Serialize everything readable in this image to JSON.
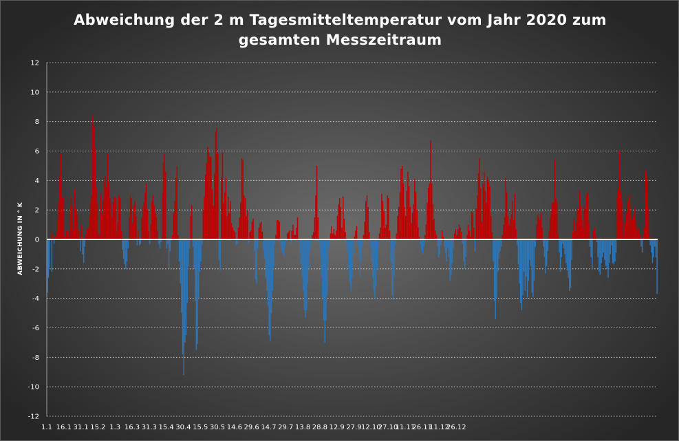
{
  "chart_data": {
    "type": "bar",
    "title": [
      "Abweichung der 2 m Tagesmitteltemperatur  vom Jahr 2020 zum",
      "gesamten Messzeitraum"
    ],
    "ylabel": "ABWEICHUNG IN ° K",
    "ylim": [
      -12,
      12
    ],
    "y_ticks": [
      12,
      10,
      8,
      6,
      4,
      2,
      0,
      -2,
      -4,
      -6,
      -8,
      -10,
      -12
    ],
    "grid": "horizontal dotted",
    "x_tick_labels": [
      "1.1",
      "16.1",
      "31.1",
      "15.2",
      "1.3",
      "16.3",
      "31.3",
      "15.4",
      "30.4",
      "15.5",
      "30.5",
      "14.6",
      "29.6",
      "14.7",
      "29.7",
      "13.8",
      "28.8",
      "12.9",
      "27.9",
      "12.10",
      "27.10",
      "11.11",
      "26.11",
      "11.12",
      "26.12"
    ],
    "colors": {
      "positive": "#c00000",
      "negative": "#2e75b6",
      "zero_line": "#ffffff"
    },
    "series": [
      {
        "x_start": "1.1",
        "values": [
          -3.6,
          -2.6,
          -1.9,
          0.5,
          -2.2,
          0.3,
          -0.3,
          0.2,
          0.5,
          1.4,
          2.6,
          4.2,
          5.8,
          2.8,
          2.9,
          0.2,
          0.2,
          0.6,
          0.6,
          0.3,
          2.2,
          2.9,
          2.3,
          0.7,
          3.4,
          2.1,
          1.8,
          0.7,
          0.6,
          -0.8,
          1.0,
          -1.0,
          -1.6,
          -0.5,
          0.3,
          0.7,
          0.8,
          1.6,
          2.6,
          3.0,
          8.4,
          7.7,
          6.2,
          3.5,
          2.5,
          0.4,
          0.3,
          3.1,
          1.7,
          2.6,
          3.9,
          4.3,
          3.5,
          5.8,
          3.9,
          2.8,
          2.4,
          1.5,
          2.5,
          2.9,
          2.8,
          0.5,
          1.2,
          3.0,
          2.8,
          0.6,
          -0.7,
          -1.3,
          -1.7,
          -2.0,
          -1.5,
          -0.6,
          1.5,
          3.0,
          2.8,
          1.1,
          2.3,
          2.6,
          1.6,
          -0.4,
          0.6,
          -0.4,
          -0.3,
          1.5,
          2.2,
          2.5,
          3.2,
          3.8,
          2.0,
          0.6,
          -0.3,
          1.0,
          2.6,
          3.0,
          2.3,
          1.8,
          1.5,
          0.6,
          -0.3,
          -0.6,
          -0.2,
          3.2,
          5.2,
          5.8,
          4.6,
          -0.6,
          -0.3,
          -2.0,
          -0.8,
          -0.1,
          0.3,
          1.8,
          2.6,
          4.2,
          5.0,
          0.3,
          -1.5,
          -3.0,
          -5.0,
          -7.8,
          -9.2,
          -7.0,
          -6.5,
          -4.3,
          -1.8,
          -0.6,
          1.6,
          2.3,
          -0.5,
          -2.0,
          -4.2,
          -7.5,
          -7.1,
          -4.0,
          -2.2,
          -1.5,
          -0.4,
          2.0,
          2.9,
          4.4,
          5.2,
          6.3,
          5.9,
          5.6,
          5.6,
          3.4,
          2.3,
          4.5,
          7.3,
          7.6,
          5.9,
          -1.4,
          -2.1,
          4.2,
          5.9,
          2.5,
          3.2,
          4.2,
          1.6,
          2.9,
          1.8,
          2.6,
          1.1,
          0.8,
          0.6,
          0.5,
          -0.4,
          -0.3,
          0.8,
          1.5,
          2.5,
          5.5,
          5.4,
          3.0,
          2.8,
          1.6,
          2.0,
          -0.3,
          0.5,
          0.6,
          1.2,
          1.4,
          -0.8,
          -2.7,
          -3.0,
          -0.6,
          0.8,
          1.1,
          1.2,
          0.5,
          -0.7,
          -1.3,
          -2.6,
          -3.5,
          -4.5,
          -6.5,
          -6.9,
          -5.0,
          -3.5,
          -1.8,
          -0.3,
          0.3,
          1.3,
          1.3,
          1.2,
          -0.3,
          -0.8,
          -1.0,
          -1.2,
          -0.5,
          -0.2,
          0.4,
          0.5,
          0.6,
          -0.3,
          0.6,
          1.0,
          0.3,
          0.3,
          0.8,
          1.5,
          -0.2,
          -1.0,
          -1.7,
          -2.5,
          -3.5,
          -4.8,
          -5.3,
          -4.8,
          -3.0,
          -2.0,
          -0.8,
          -0.3,
          0.3,
          0.5,
          1.5,
          3.0,
          5.0,
          1.5,
          -0.3,
          -1.0,
          -2.5,
          -4.0,
          -5.5,
          -7.0,
          -5.5,
          -3.8,
          -2.0,
          -0.5,
          0.4,
          0.9,
          0.4,
          0.7,
          0.3,
          0.6,
          1.6,
          2.4,
          2.8,
          2.2,
          0.8,
          2.9,
          1.4,
          0.5,
          -0.3,
          -0.9,
          -2.0,
          -2.9,
          -3.5,
          -2.6,
          -1.0,
          0.2,
          0.6,
          0.9,
          -0.4,
          -1.3,
          -2.5,
          -1.6,
          -0.5,
          0.3,
          1.2,
          2.6,
          3.0,
          2.2,
          0.5,
          -0.5,
          -1.5,
          -2.6,
          -3.5,
          -4.0,
          -3.2,
          -2.0,
          -0.5,
          0.4,
          0.8,
          3.1,
          2.6,
          1.9,
          0.8,
          1.0,
          3.0,
          2.8,
          0.6,
          -1.5,
          -3.8,
          -4.1,
          -2.5,
          -0.4,
          0.4,
          1.6,
          2.2,
          3.2,
          4.8,
          5.0,
          3.8,
          2.2,
          1.6,
          3.3,
          4.6,
          3.6,
          2.2,
          1.1,
          1.8,
          2.4,
          4.1,
          3.2,
          2.0,
          0.8,
          0.2,
          -0.3,
          -0.7,
          -1.0,
          -0.5,
          0.3,
          1.0,
          2.5,
          3.5,
          3.8,
          6.7,
          3.8,
          2.4,
          1.4,
          0.6,
          0.3,
          -0.5,
          -1.2,
          -1.0,
          -0.4,
          0.6,
          0.2,
          -0.5,
          -0.9,
          -1.5,
          -0.6,
          -1.2,
          -2.8,
          -2.4,
          -1.6,
          -0.6,
          0.4,
          0.7,
          0.3,
          0.7,
          1.0,
          0.8,
          0.5,
          -0.3,
          -1.5,
          -2.0,
          -1.2,
          0.3,
          1.0,
          0.6,
          0.2,
          1.9,
          1.8,
          0.8,
          -0.8,
          2.1,
          3.0,
          4.5,
          5.5,
          3.5,
          1.2,
          3.8,
          4.6,
          3.3,
          2.5,
          4.2,
          3.9,
          3.6,
          1.6,
          0.5,
          -1.5,
          -4.2,
          -5.4,
          -4.0,
          -2.2,
          -1.3,
          -0.8,
          -0.5,
          0.3,
          1.0,
          1.5,
          4.2,
          3.2,
          1.6,
          1.0,
          1.4,
          1.7,
          2.6,
          1.3,
          3.1,
          0.7,
          -0.4,
          -1.7,
          -3.0,
          -4.3,
          -4.8,
          -3.8,
          -2.2,
          -3.5,
          -2.5,
          -4.0,
          -2.8,
          -1.4,
          -1.8,
          -3.6,
          -3.9,
          -2.8,
          -0.5,
          1.0,
          1.7,
          1.5,
          1.3,
          1.8,
          0.8,
          -0.5,
          -1.2,
          -2.3,
          -1.8,
          -0.8,
          0.6,
          1.5,
          1.9,
          2.5,
          2.5,
          5.4,
          2.8,
          2.6,
          0.4,
          -0.9,
          -2.2,
          -1.2,
          -0.3,
          -0.6,
          -1.0,
          -1.6,
          -2.1,
          -2.6,
          -3.5,
          -3.3,
          -1.4,
          0.5,
          1.4,
          0.6,
          1.2,
          2.1,
          2.0,
          3.3,
          2.2,
          1.3,
          0.8,
          2.3,
          2.0,
          3.0,
          3.2,
          1.2,
          -0.5,
          -1.2,
          -2.0,
          0.6,
          0.8,
          0.3,
          -0.2,
          -1.2,
          -2.2,
          -2.4,
          -1.6,
          -1.2,
          -0.9,
          -1.4,
          -1.8,
          -2.0,
          -2.6,
          -1.6,
          -1.0,
          -0.4,
          -1.6,
          -1.7,
          -1.5,
          -0.9,
          2.9,
          3.4,
          6.0,
          3.2,
          2.6,
          1.2,
          0.3,
          1.1,
          1.8,
          2.6,
          2.9,
          3.1,
          2.0,
          1.3,
          1.6,
          2.2,
          1.3,
          0.9,
          0.6,
          0.7,
          0.3,
          -0.5,
          -0.9,
          0.3,
          0.8,
          4.7,
          4.2,
          2.2,
          0.4,
          -0.4,
          -0.9,
          -1.6,
          -1.2,
          -0.5,
          -1.2,
          -3.7
        ]
      }
    ]
  }
}
